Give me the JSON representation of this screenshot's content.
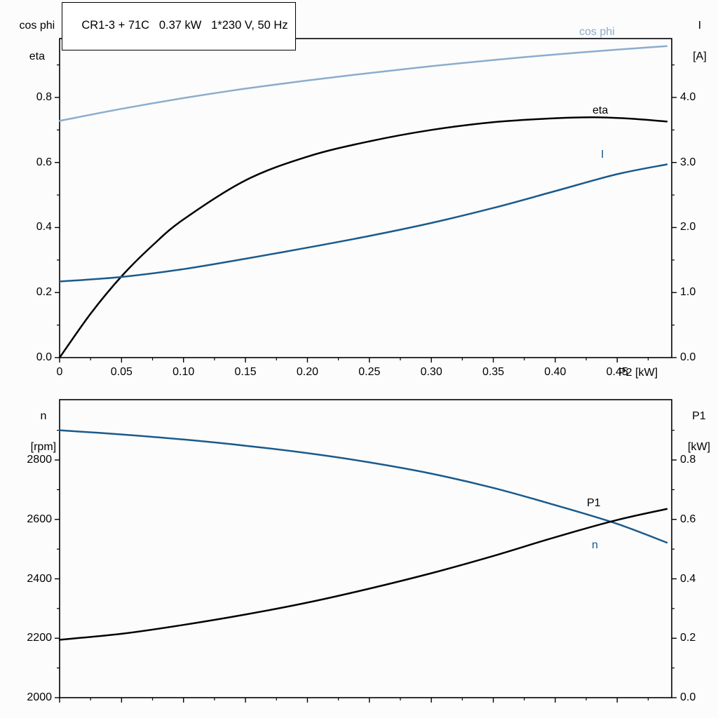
{
  "title": "CR1-3 + 71C   0.37 kW   1*230 V, 50 Hz",
  "colors": {
    "cos_phi": "#8cadcc",
    "current": "#1a5a8c",
    "black": "#000000"
  },
  "axis_labels": {
    "top_left_line1": "cos phi",
    "top_left_line2": "eta",
    "top_right_line1": "I",
    "top_right_line2": "[A]",
    "bottom_left_line1": "n",
    "bottom_left_line2": "[rpm]",
    "bottom_right_line1": "P1",
    "bottom_right_line2": "[kW]",
    "x_axis": "P2 [kW]"
  },
  "curve_labels": {
    "cos_phi": "cos phi",
    "eta": "eta",
    "current": "I",
    "p1": "P1",
    "n": "n"
  },
  "chart_data": [
    {
      "type": "line",
      "title": "CR1-3 + 71C   0.37 kW   1*230 V, 50 Hz",
      "x_axis": {
        "label": "P2 [kW]",
        "min": 0,
        "max": 0.494,
        "ticks": [
          0,
          0.05,
          0.1,
          0.15,
          0.2,
          0.25,
          0.3,
          0.35,
          0.4,
          0.45
        ],
        "tick_labels": [
          "0",
          "0.05",
          "0.10",
          "0.15",
          "0.20",
          "0.25",
          "0.30",
          "0.35",
          "0.40",
          "0.45"
        ]
      },
      "y_left": {
        "label": "cos phi / eta",
        "min": 0,
        "max": 0.981,
        "ticks": [
          0.0,
          0.2,
          0.4,
          0.6,
          0.8
        ],
        "tick_labels": [
          "0.0",
          "0.2",
          "0.4",
          "0.6",
          "0.8"
        ]
      },
      "y_right": {
        "label": "I [A]",
        "min": 0,
        "max": 4.905,
        "ticks": [
          0.0,
          1.0,
          2.0,
          3.0,
          4.0
        ],
        "tick_labels": [
          "0.0",
          "1.0",
          "2.0",
          "3.0",
          "4.0"
        ]
      },
      "series": [
        {
          "name": "cos phi",
          "axis": "left",
          "color_key": "cos_phi",
          "points": [
            [
              0,
              0.728
            ],
            [
              0.05,
              0.765
            ],
            [
              0.1,
              0.798
            ],
            [
              0.15,
              0.827
            ],
            [
              0.2,
              0.852
            ],
            [
              0.25,
              0.875
            ],
            [
              0.3,
              0.896
            ],
            [
              0.35,
              0.915
            ],
            [
              0.4,
              0.932
            ],
            [
              0.45,
              0.947
            ],
            [
              0.49,
              0.958
            ]
          ]
        },
        {
          "name": "eta",
          "axis": "left",
          "color_key": "black",
          "points": [
            [
              0,
              0.0
            ],
            [
              0.025,
              0.135
            ],
            [
              0.05,
              0.25
            ],
            [
              0.075,
              0.345
            ],
            [
              0.1,
              0.425
            ],
            [
              0.15,
              0.545
            ],
            [
              0.2,
              0.618
            ],
            [
              0.25,
              0.665
            ],
            [
              0.3,
              0.7
            ],
            [
              0.35,
              0.724
            ],
            [
              0.4,
              0.736
            ],
            [
              0.43,
              0.739
            ],
            [
              0.46,
              0.735
            ],
            [
              0.49,
              0.726
            ]
          ]
        },
        {
          "name": "I",
          "axis": "right",
          "color_key": "current",
          "points": [
            [
              0,
              1.17
            ],
            [
              0.05,
              1.24
            ],
            [
              0.1,
              1.36
            ],
            [
              0.15,
              1.52
            ],
            [
              0.2,
              1.69
            ],
            [
              0.25,
              1.87
            ],
            [
              0.3,
              2.07
            ],
            [
              0.35,
              2.3
            ],
            [
              0.4,
              2.56
            ],
            [
              0.45,
              2.82
            ],
            [
              0.49,
              2.97
            ]
          ]
        }
      ]
    },
    {
      "type": "line",
      "title": "",
      "x_axis": {
        "label": "",
        "min": 0,
        "max": 0.494,
        "ticks": [
          0,
          0.05,
          0.1,
          0.15,
          0.2,
          0.25,
          0.3,
          0.35,
          0.4,
          0.45
        ],
        "tick_labels": []
      },
      "y_left": {
        "label": "n [rpm]",
        "min": 2000,
        "max": 3003,
        "ticks": [
          2000,
          2200,
          2400,
          2600,
          2800
        ],
        "tick_labels": [
          "2000",
          "2200",
          "2400",
          "2600",
          "2800"
        ]
      },
      "y_right": {
        "label": "P1 [kW]",
        "min": 0,
        "max": 1.003,
        "ticks": [
          0.0,
          0.2,
          0.4,
          0.6,
          0.8
        ],
        "tick_labels": [
          "0.0",
          "0.2",
          "0.4",
          "0.6",
          "0.8"
        ]
      },
      "series": [
        {
          "name": "n",
          "axis": "left",
          "color_key": "current",
          "points": [
            [
              0,
              2900
            ],
            [
              0.05,
              2886
            ],
            [
              0.1,
              2869
            ],
            [
              0.15,
              2848
            ],
            [
              0.2,
              2823
            ],
            [
              0.25,
              2792
            ],
            [
              0.3,
              2754
            ],
            [
              0.35,
              2706
            ],
            [
              0.4,
              2648
            ],
            [
              0.45,
              2585
            ],
            [
              0.49,
              2522
            ]
          ]
        },
        {
          "name": "P1",
          "axis": "right",
          "color_key": "black",
          "points": [
            [
              0,
              0.195
            ],
            [
              0.05,
              0.215
            ],
            [
              0.1,
              0.245
            ],
            [
              0.15,
              0.28
            ],
            [
              0.2,
              0.32
            ],
            [
              0.25,
              0.367
            ],
            [
              0.3,
              0.419
            ],
            [
              0.35,
              0.477
            ],
            [
              0.4,
              0.54
            ],
            [
              0.45,
              0.598
            ],
            [
              0.49,
              0.635
            ]
          ]
        }
      ]
    }
  ]
}
